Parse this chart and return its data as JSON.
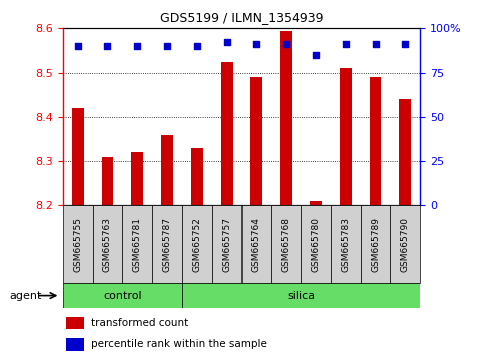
{
  "title": "GDS5199 / ILMN_1354939",
  "samples": [
    "GSM665755",
    "GSM665763",
    "GSM665781",
    "GSM665787",
    "GSM665752",
    "GSM665757",
    "GSM665764",
    "GSM665768",
    "GSM665780",
    "GSM665783",
    "GSM665789",
    "GSM665790"
  ],
  "groups": [
    "control",
    "control",
    "control",
    "control",
    "silica",
    "silica",
    "silica",
    "silica",
    "silica",
    "silica",
    "silica",
    "silica"
  ],
  "transformed_count": [
    8.42,
    8.31,
    8.32,
    8.36,
    8.33,
    8.525,
    8.49,
    8.595,
    8.21,
    8.51,
    8.49,
    8.44
  ],
  "percentile_rank": [
    90,
    90,
    90,
    90,
    90,
    92,
    91,
    91,
    85,
    91,
    91,
    91
  ],
  "ylim_left": [
    8.2,
    8.6
  ],
  "ylim_right": [
    0,
    100
  ],
  "yticks_left": [
    8.2,
    8.3,
    8.4,
    8.5,
    8.6
  ],
  "yticks_right": [
    0,
    25,
    50,
    75,
    100
  ],
  "ytick_right_labels": [
    "0",
    "25",
    "50",
    "75",
    "100%"
  ],
  "bar_color": "#cc0000",
  "dot_color": "#0000cc",
  "plot_bg_color": "#ffffff",
  "tick_box_color": "#d0d0d0",
  "control_color": "#66dd66",
  "silica_color": "#66dd66",
  "agent_label": "agent",
  "legend_bar_label": "transformed count",
  "legend_dot_label": "percentile rank within the sample",
  "group_label_control": "control",
  "group_label_silica": "silica",
  "bar_bottom": 8.2,
  "bar_width": 0.4
}
